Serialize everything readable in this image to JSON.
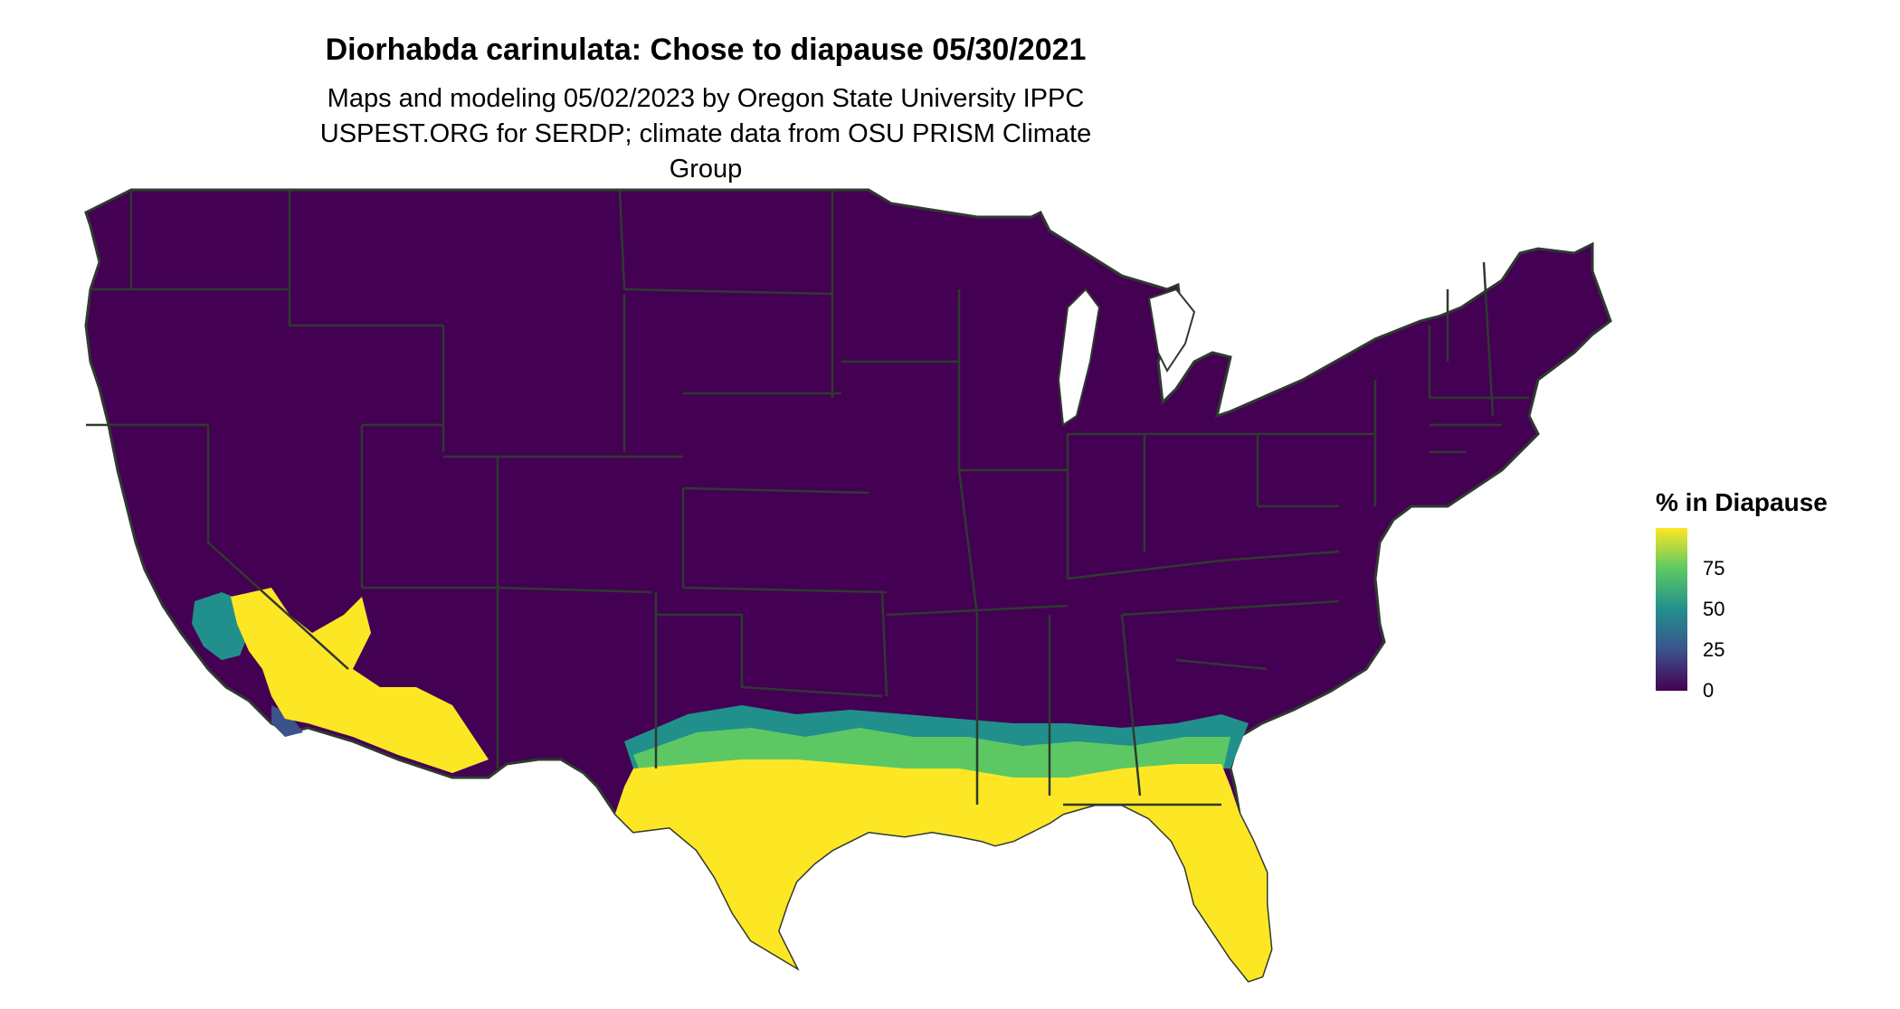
{
  "title": "Diorhabda carinulata: Chose to diapause 05/30/2021",
  "subtitle": "Maps and modeling 05/02/2023 by Oregon State University IPPC USPEST.ORG for SERDP; climate data from OSU PRISM Climate Group",
  "legend": {
    "title": "% in Diapause",
    "ticks": [
      {
        "value": 0,
        "label": "0"
      },
      {
        "value": 25,
        "label": "25"
      },
      {
        "value": 50,
        "label": "50"
      },
      {
        "value": 75,
        "label": "75"
      }
    ],
    "max_value": 100,
    "color_scale": [
      "#440154",
      "#3b528b",
      "#21908d",
      "#5dc863",
      "#fde725"
    ]
  },
  "colors": {
    "none": "#440154",
    "low": "#3b528b",
    "mid": "#21908d",
    "high": "#5dc863",
    "full": "#fde725",
    "borders": "#2f3a2f"
  },
  "chart_data": {
    "type": "heatmap",
    "map_region": "contiguous United States",
    "value_scale": "% in Diapause (0-100)",
    "regions": [
      {
        "area": "northern and central US",
        "percent": 0
      },
      {
        "area": "southern California / southwestern Arizona deserts",
        "percent": 100
      },
      {
        "area": "southern Texas",
        "percent": 100
      },
      {
        "area": "southern Louisiana / Gulf Coast",
        "percent": 100
      },
      {
        "area": "Florida",
        "percent": 100
      },
      {
        "area": "southern Georgia",
        "percent": 90
      },
      {
        "area": "Gulf Coast transition band",
        "percent": 50
      }
    ]
  }
}
